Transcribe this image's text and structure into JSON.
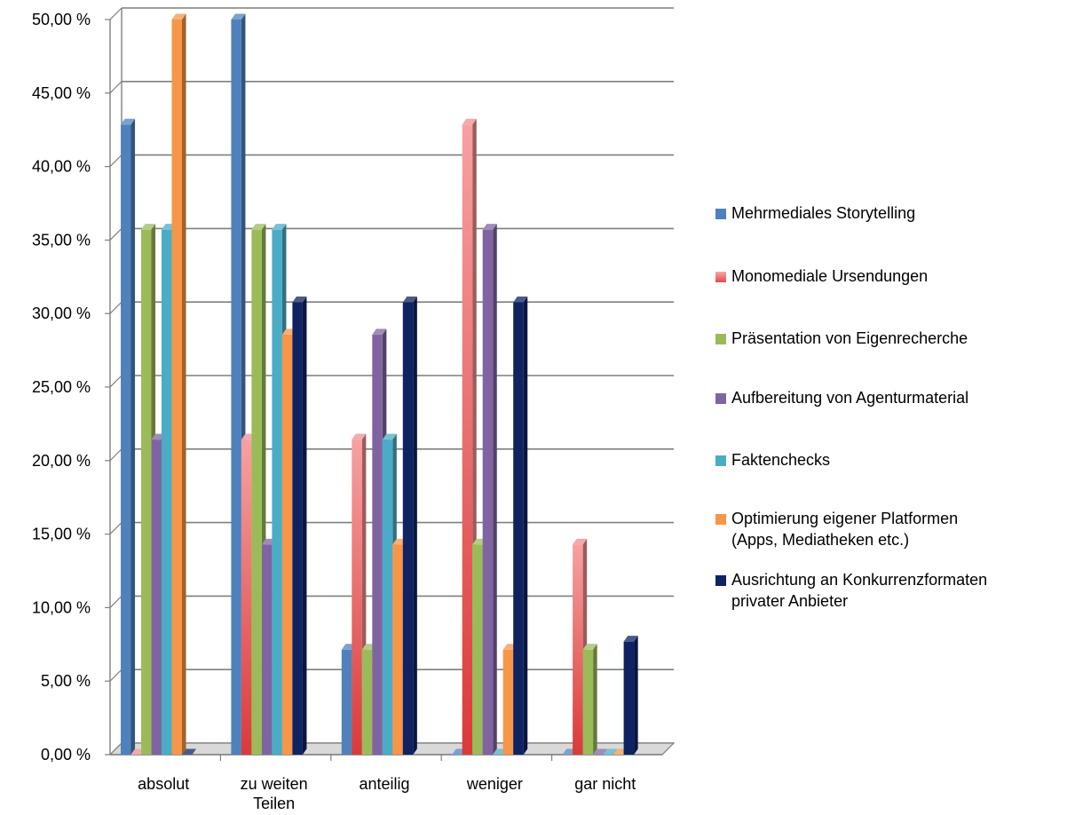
{
  "chart_data": {
    "type": "bar",
    "categories": [
      "absolut",
      "zu weiten\nTeilen",
      "anteilig",
      "weniger",
      "gar nicht"
    ],
    "series": [
      {
        "name": "Mehrmediales Storytelling",
        "color": "#4F81BD",
        "values": [
          42.86,
          50.0,
          7.14,
          0.0,
          0.0
        ]
      },
      {
        "name": "Monomediale Ursendungen",
        "color": "#F28C8C",
        "values": [
          0.0,
          21.43,
          21.43,
          42.86,
          14.29
        ]
      },
      {
        "name": "Präsentation von Eigenrecherche",
        "color": "#9BBB59",
        "values": [
          35.71,
          35.71,
          7.14,
          14.29,
          7.14
        ]
      },
      {
        "name": "Aufbereitung von Agenturmaterial",
        "color": "#8064A2",
        "values": [
          21.43,
          14.29,
          28.57,
          35.71,
          0.0
        ]
      },
      {
        "name": "Faktenchecks",
        "color": "#4BACC6",
        "values": [
          35.71,
          35.71,
          21.43,
          0.0,
          0.0
        ]
      },
      {
        "name": "Optimierung eigener Platformen\n(Apps, Mediatheken etc.)",
        "color": "#F79646",
        "values": [
          50.0,
          28.57,
          14.29,
          7.14,
          0.0
        ]
      },
      {
        "name": "Ausrichtung an Konkurrenzformaten\nprivater Anbieter",
        "color": "#0F2262",
        "values": [
          0.0,
          30.77,
          30.77,
          30.77,
          7.69
        ]
      }
    ],
    "y_ticks": [
      "0,00 %",
      "5,00 %",
      "10,00 %",
      "15,00 %",
      "20,00 %",
      "25,00 %",
      "30,00 %",
      "35,00 %",
      "40,00 %",
      "45,00 %",
      "50,00 %"
    ],
    "ylim": [
      0,
      50
    ],
    "grid": true,
    "legend_position": "right"
  }
}
